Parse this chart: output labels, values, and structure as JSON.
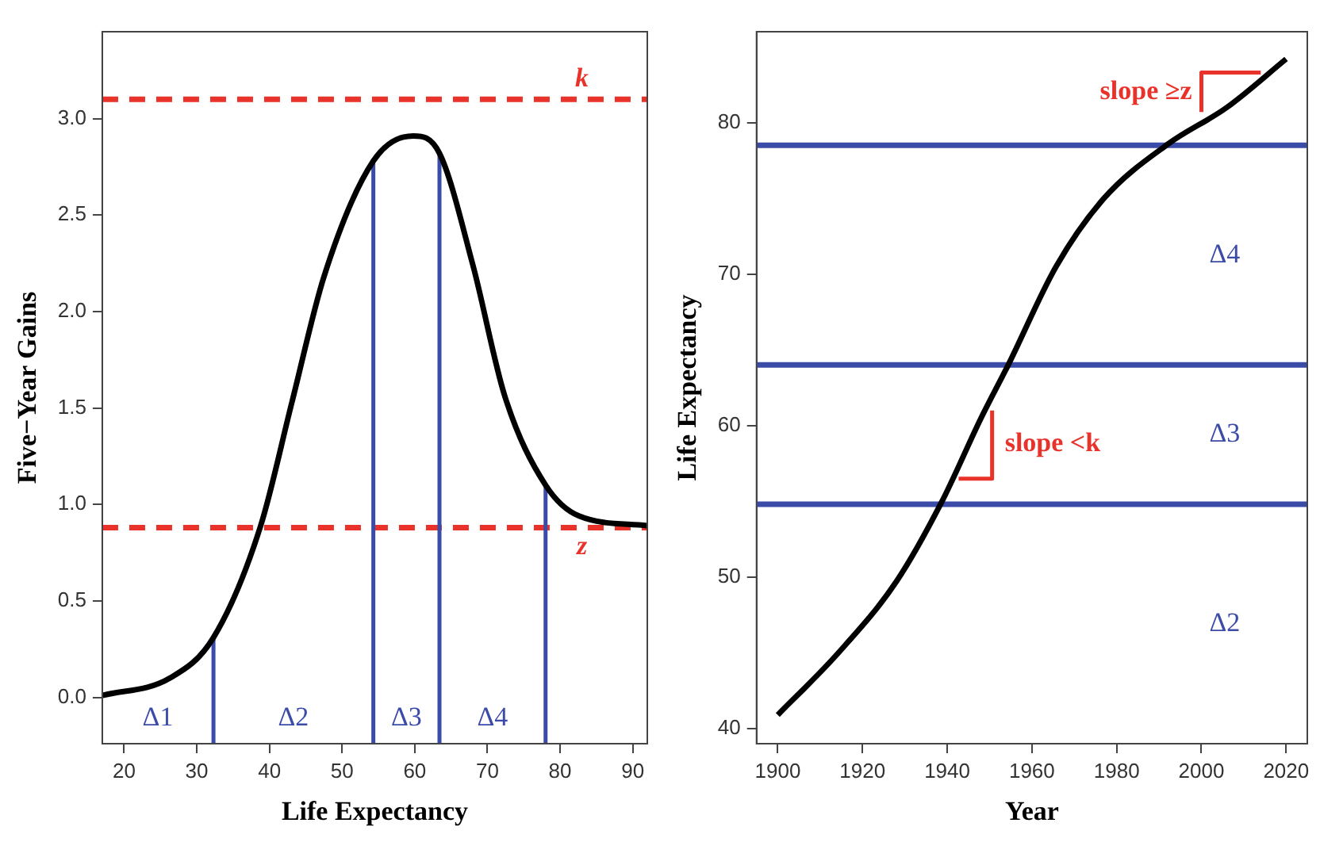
{
  "chart_data": [
    {
      "type": "line",
      "xlabel": "Life Expectancy",
      "ylabel": "Five−Year Gains",
      "xlim": [
        17,
        92
      ],
      "ylim": [
        -0.24,
        3.45
      ],
      "xticks": [
        20,
        30,
        40,
        50,
        60,
        70,
        80,
        90
      ],
      "yticks": [
        {
          "value": 0,
          "label": "0.0"
        },
        {
          "value": 0.5,
          "label": "0.5"
        },
        {
          "value": 1,
          "label": "1.0"
        },
        {
          "value": 1.5,
          "label": "1.5"
        },
        {
          "value": 2,
          "label": "2.0"
        },
        {
          "value": 2.5,
          "label": "2.5"
        },
        {
          "value": 3,
          "label": "3.0"
        }
      ],
      "marker": "none",
      "legend": false,
      "series": [
        {
          "color": "#000000",
          "x": [
            17,
            26.3,
            32.3,
            38.8,
            43.1,
            47.5,
            54.3,
            59.8,
            63.4,
            68,
            72.4,
            78,
            82.6,
            92
          ],
          "values": [
            0.01,
            0.1,
            0.31,
            0.89,
            1.53,
            2.18,
            2.78,
            2.91,
            2.82,
            2.24,
            1.56,
            1.1,
            0.94,
            0.89
          ]
        },
        {
          "color": "#3b4ba8",
          "x": [
            32.3,
            32.3
          ],
          "values": [
            -0.24,
            0.31
          ]
        },
        {
          "color": "#3b4ba8",
          "x": [
            54.3,
            54.3
          ],
          "values": [
            -0.24,
            2.78
          ]
        },
        {
          "color": "#3b4ba8",
          "x": [
            63.4,
            63.4
          ],
          "values": [
            -0.24,
            2.82
          ]
        },
        {
          "color": "#3b4ba8",
          "x": [
            78,
            78
          ],
          "values": [
            -0.24,
            1.1
          ]
        }
      ],
      "ref_lines": [
        {
          "axis": "y",
          "value": 3.1,
          "label": "k",
          "color": "#e8322a",
          "line_style": "dashed"
        },
        {
          "axis": "y",
          "value": 0.88,
          "label": "z",
          "color": "#e8322a",
          "line_style": "dashed"
        }
      ],
      "annotations": [
        "Δ1",
        "Δ2",
        "Δ3",
        "Δ4"
      ]
    },
    {
      "type": "line",
      "xlabel": "Year",
      "ylabel": "Life Expectancy",
      "xlim": [
        1895,
        2025
      ],
      "ylim": [
        39,
        86
      ],
      "xticks": [
        1900,
        1920,
        1940,
        1960,
        1980,
        2000,
        2020
      ],
      "yticks": [
        40,
        50,
        60,
        70,
        80
      ],
      "marker": "none",
      "legend": false,
      "series": [
        {
          "color": "#000000",
          "x": [
            1900,
            1914,
            1928,
            1938.6,
            1948,
            1954.4,
            1965.7,
            1977,
            1992.2,
            2006,
            2020
          ],
          "values": [
            40.9,
            44.9,
            49.7,
            54.9,
            60.5,
            64,
            70.5,
            75,
            78.6,
            81,
            84.2
          ]
        },
        {
          "name": "slope <k",
          "color": "#e8322a",
          "x": [
            1942.7,
            1950.6,
            1950.6
          ],
          "values": [
            56.5,
            56.5,
            61
          ]
        },
        {
          "name": "slope ≥z",
          "color": "#e8322a",
          "x": [
            2000,
            2000,
            2014
          ],
          "values": [
            80.7,
            83.3,
            83.3
          ]
        }
      ],
      "ref_lines": [
        {
          "axis": "y",
          "value": 78.5,
          "color": "#3b4ba8",
          "line_style": "solid"
        },
        {
          "axis": "y",
          "value": 64,
          "color": "#3b4ba8",
          "line_style": "solid"
        },
        {
          "axis": "y",
          "value": 54.8,
          "color": "#3b4ba8",
          "line_style": "solid"
        }
      ],
      "annotations": [
        "Δ4",
        "Δ3",
        "Δ2"
      ]
    }
  ]
}
